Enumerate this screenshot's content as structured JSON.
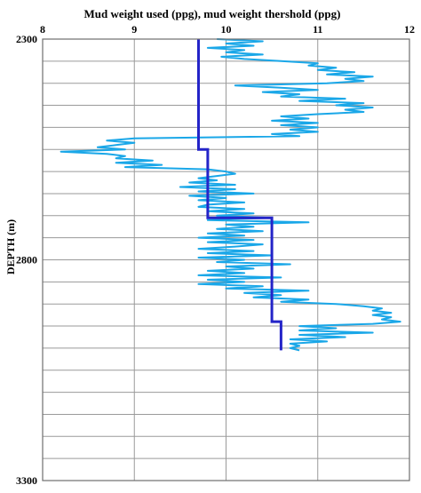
{
  "chart_data": {
    "type": "line",
    "title": "Mud weight used (ppg), mud weight thershold (ppg)",
    "xlabel": "",
    "ylabel": "DEPTH (m)",
    "x_axis_position": "top",
    "xlim": [
      8,
      12
    ],
    "ylim": [
      2300,
      3300
    ],
    "y_inverted": true,
    "x_ticks": [
      "8",
      "9",
      "10",
      "11",
      "12"
    ],
    "y_ticks": [
      "2300",
      "2800",
      "3300"
    ],
    "grid": {
      "vertical": true,
      "horizontal": true,
      "horizontal_step": 50
    },
    "legend": "none",
    "series": [
      {
        "color": "#1aa7e8",
        "line_width": 2,
        "depth": [
          2300,
          2305,
          2310,
          2315,
          2320,
          2325,
          2330,
          2335,
          2340,
          2345,
          2350,
          2355,
          2360,
          2365,
          2370,
          2375,
          2380,
          2385,
          2390,
          2395,
          2400,
          2405,
          2410,
          2415,
          2420,
          2425,
          2430,
          2435,
          2440,
          2445,
          2450,
          2455,
          2460,
          2465,
          2470,
          2475,
          2480,
          2485,
          2490,
          2495,
          2500,
          2505,
          2510,
          2515,
          2520,
          2525,
          2530,
          2535,
          2540,
          2545,
          2550,
          2555,
          2560,
          2565,
          2570,
          2575,
          2580,
          2585,
          2590,
          2595,
          2600,
          2605,
          2610,
          2615,
          2620,
          2625,
          2630,
          2635,
          2640,
          2645,
          2650,
          2655,
          2660,
          2665,
          2670,
          2675,
          2680,
          2685,
          2690,
          2695,
          2700,
          2705,
          2710,
          2715,
          2720,
          2725,
          2730,
          2735,
          2740,
          2745,
          2750,
          2755,
          2760,
          2765,
          2770,
          2775,
          2780,
          2785,
          2790,
          2795,
          2800,
          2805,
          2810,
          2815,
          2820,
          2825,
          2830,
          2835,
          2840,
          2845,
          2850,
          2855,
          2860,
          2865,
          2870,
          2875,
          2880,
          2885,
          2890,
          2895,
          2900,
          2905,
          2910,
          2915,
          2920,
          2925,
          2930,
          2935,
          2940,
          2945,
          2950,
          2955,
          2960,
          2965,
          2970,
          2975,
          2980,
          2985,
          2990,
          2995,
          3000,
          3005
        ],
        "values": [
          9.9,
          10.4,
          10.0,
          10.3,
          9.8,
          10.2,
          10.0,
          10.4,
          9.95,
          10.2,
          10.6,
          11.0,
          10.9,
          11.2,
          11.0,
          11.4,
          11.1,
          11.6,
          11.3,
          11.5,
          11.1,
          10.1,
          10.6,
          11.0,
          10.4,
          10.8,
          10.6,
          11.3,
          10.8,
          11.5,
          11.2,
          11.6,
          11.3,
          11.5,
          11.0,
          10.6,
          10.9,
          10.5,
          11.0,
          10.6,
          11.0,
          10.7,
          11.0,
          10.5,
          10.8,
          9.0,
          8.7,
          9.0,
          8.8,
          8.6,
          8.9,
          8.2,
          8.7,
          8.9,
          8.8,
          9.2,
          8.8,
          9.3,
          8.9,
          9.8,
          10.0,
          10.1,
          9.9,
          9.7,
          9.9,
          9.6,
          10.1,
          9.5,
          10.1,
          9.7,
          10.3,
          9.6,
          10.0,
          9.7,
          10.2,
          9.8,
          9.7,
          10.2,
          9.8,
          10.3,
          9.9,
          10.5,
          9.8,
          10.9,
          10.0,
          10.3,
          9.9,
          10.4,
          9.8,
          10.2,
          9.7,
          10.3,
          9.8,
          10.4,
          10.1,
          9.7,
          10.3,
          9.8,
          10.5,
          9.7,
          10.2,
          9.9,
          10.7,
          10.0,
          10.3,
          9.8,
          10.2,
          9.7,
          10.6,
          9.8,
          10.2,
          9.7,
          10.4,
          10.0,
          10.9,
          10.2,
          10.6,
          10.3,
          10.9,
          10.6,
          11.2,
          11.5,
          11.7,
          11.6,
          11.8,
          11.6,
          11.8,
          11.7,
          11.9,
          11.6,
          10.8,
          11.2,
          10.8,
          11.6,
          10.8,
          11.3,
          10.7,
          11.1,
          10.7,
          10.8,
          10.7,
          10.8
        ]
      },
      {
        "color": "#2424c8",
        "line_width": 3,
        "step_points": [
          [
            9.7,
            2300
          ],
          [
            9.7,
            2550
          ],
          [
            9.8,
            2550
          ],
          [
            9.8,
            2705
          ],
          [
            10.5,
            2705
          ],
          [
            10.5,
            2940
          ],
          [
            10.6,
            2940
          ],
          [
            10.6,
            3005
          ]
        ]
      }
    ]
  }
}
